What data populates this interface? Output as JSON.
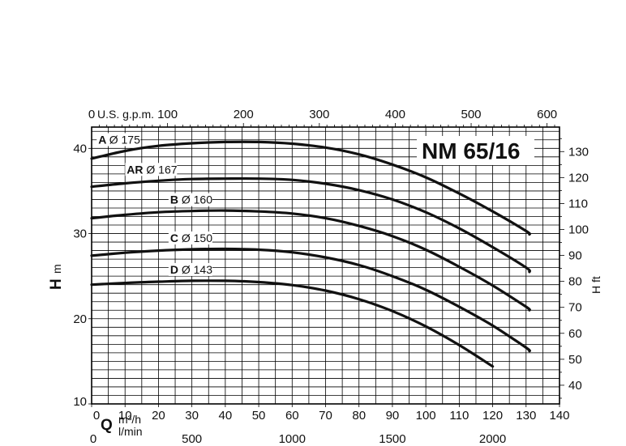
{
  "chart_data": {
    "type": "line",
    "title": "NM 65/16",
    "x_primary": {
      "label_symbol": "Q",
      "unit": "m³/h",
      "range": [
        0,
        140
      ],
      "ticks": [
        0,
        10,
        20,
        30,
        40,
        50,
        60,
        70,
        80,
        90,
        100,
        110,
        120,
        130,
        140
      ]
    },
    "x_top": {
      "label": "U.S. g.p.m.",
      "range_max": 616.4,
      "ticks": [
        100,
        200,
        300,
        400,
        500,
        600
      ]
    },
    "x_bottom2": {
      "label": "l/min",
      "ticks": [
        0,
        500,
        1000,
        1500,
        2000
      ]
    },
    "y_left": {
      "label": "H m",
      "range": [
        10,
        42.5
      ],
      "ticks": [
        10,
        20,
        30,
        40
      ]
    },
    "y_right": {
      "label": "H ft",
      "ticks": [
        40,
        50,
        60,
        70,
        80,
        90,
        100,
        110,
        120,
        130
      ]
    },
    "grid": true,
    "series": [
      {
        "letter": "A",
        "name": "Ø 175",
        "x": [
          0,
          10,
          20,
          30,
          40,
          50,
          60,
          70,
          80,
          90,
          100,
          110,
          120,
          130,
          131
        ],
        "y": [
          38.8,
          39.7,
          40.3,
          40.6,
          40.75,
          40.75,
          40.55,
          40.1,
          39.3,
          38.1,
          36.6,
          34.7,
          32.6,
          30.3,
          29.9
        ]
      },
      {
        "letter": "AR",
        "name": "Ø 167",
        "x": [
          0,
          10,
          20,
          30,
          40,
          50,
          60,
          70,
          80,
          90,
          100,
          110,
          120,
          130,
          131
        ],
        "y": [
          35.5,
          35.9,
          36.2,
          36.4,
          36.45,
          36.45,
          36.3,
          35.85,
          35.1,
          34.0,
          32.5,
          30.6,
          28.4,
          26.0,
          25.5
        ]
      },
      {
        "letter": "B",
        "name": "Ø 160",
        "x": [
          0,
          10,
          20,
          30,
          40,
          50,
          60,
          70,
          80,
          90,
          100,
          110,
          120,
          130,
          131
        ],
        "y": [
          31.8,
          32.2,
          32.5,
          32.65,
          32.7,
          32.6,
          32.35,
          31.8,
          30.9,
          29.7,
          28.1,
          26.1,
          23.9,
          21.4,
          21.0
        ]
      },
      {
        "letter": "C",
        "name": "Ø 150",
        "x": [
          0,
          10,
          20,
          30,
          40,
          50,
          60,
          70,
          80,
          90,
          100,
          110,
          120,
          130,
          131
        ],
        "y": [
          27.4,
          27.75,
          28.0,
          28.15,
          28.2,
          28.1,
          27.8,
          27.2,
          26.3,
          25.0,
          23.4,
          21.4,
          19.2,
          16.6,
          16.2
        ]
      },
      {
        "letter": "D",
        "name": "Ø 143",
        "x": [
          0,
          10,
          20,
          30,
          40,
          50,
          60,
          70,
          80,
          90,
          100,
          110,
          120
        ],
        "y": [
          24.0,
          24.2,
          24.35,
          24.45,
          24.45,
          24.3,
          23.95,
          23.3,
          22.3,
          20.9,
          19.1,
          16.9,
          14.4
        ]
      }
    ]
  },
  "labels": {
    "model": "NM 65/16",
    "top_unit": "U.S. g.p.m.",
    "y_left_symbol": "H",
    "y_left_unit": "m",
    "y_right": "H ft",
    "q_symbol": "Q",
    "q_unit1": "m³/h",
    "q_unit2": "l/min"
  }
}
